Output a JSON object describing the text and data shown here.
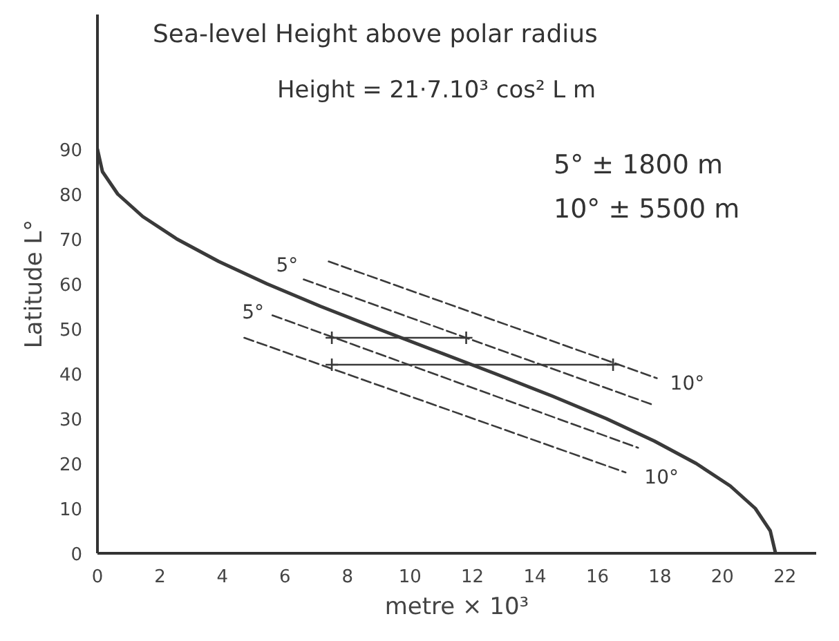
{
  "chart_data": {
    "type": "line",
    "title": "Sea-level Height above polar radius",
    "xlabel": "metre × 10³",
    "ylabel": "Latitude L°",
    "xlim": [
      0,
      23
    ],
    "ylim": [
      0,
      120
    ],
    "xticks": [
      0,
      2,
      4,
      6,
      8,
      10,
      12,
      14,
      16,
      18,
      20,
      22
    ],
    "yticks": [
      0,
      10,
      20,
      30,
      40,
      50,
      60,
      70,
      80,
      90
    ],
    "grid": false,
    "series": [
      {
        "line_style": "solid",
        "color": "#3a3a3a",
        "x": [
          0,
          0.16,
          0.65,
          1.45,
          2.54,
          3.88,
          5.43,
          7.14,
          8.97,
          10.85,
          12.73,
          14.56,
          16.28,
          17.82,
          19.16,
          20.25,
          21.05,
          21.53,
          21.7
        ],
        "values": [
          90,
          85,
          80,
          75,
          70,
          65,
          60,
          55,
          50,
          45,
          40,
          35,
          30,
          25,
          20,
          15,
          10,
          5,
          0
        ]
      },
      {
        "name": "10°",
        "line_style": "dashed",
        "color": "#3a3a3a",
        "x": [
          7.4,
          17.9
        ],
        "values": [
          65,
          39
        ]
      },
      {
        "name": "5°",
        "line_style": "dashed",
        "color": "#3a3a3a",
        "x": [
          6.6,
          17.8
        ],
        "values": [
          61,
          33
        ]
      },
      {
        "name": "5°",
        "line_style": "dashed",
        "color": "#3a3a3a",
        "x": [
          5.6,
          17.3
        ],
        "values": [
          53,
          23.5
        ]
      },
      {
        "name": "10°",
        "line_style": "dashed",
        "color": "#3a3a3a",
        "x": [
          4.7,
          16.9
        ],
        "values": [
          48,
          18
        ]
      },
      {
        "line_style": "solid",
        "marker": "cross",
        "color": "#3a3a3a",
        "x": [
          7.5,
          11.8
        ],
        "values": [
          48,
          48
        ]
      },
      {
        "line_style": "solid",
        "marker": "cross",
        "color": "#3a3a3a",
        "x": [
          7.5,
          16.5
        ],
        "values": [
          42,
          42
        ]
      }
    ],
    "annotations": [
      "Height = 21·7.10³ cos² L  m",
      "5° ± 1800 m",
      "10° ± 5500 m"
    ]
  }
}
